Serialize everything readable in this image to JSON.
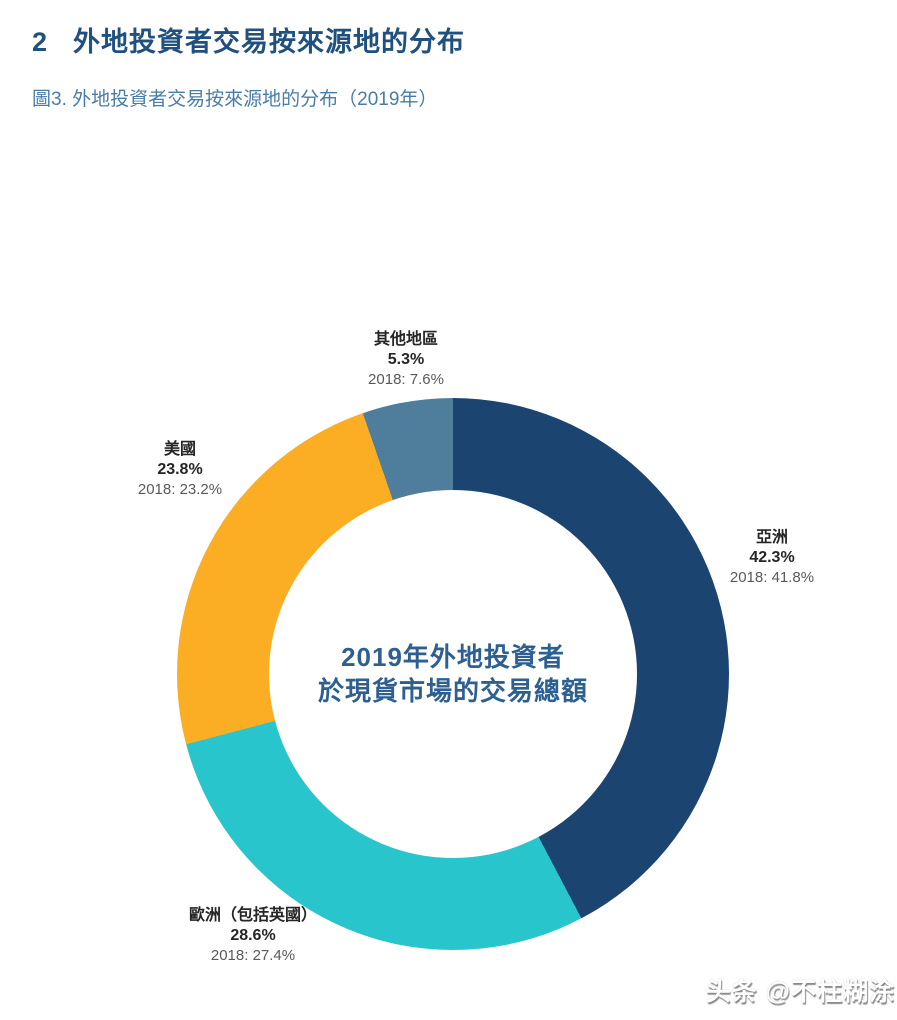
{
  "header": {
    "section_number": "2",
    "section_title": "外地投資者交易按來源地的分布",
    "figure_caption": "圖3. 外地投資者交易按來源地的分布（2019年）"
  },
  "chart_data": {
    "type": "pie",
    "donut": true,
    "start_angle_deg": 0,
    "direction": "clockwise",
    "legend_position": "around-labels",
    "center_title_line1": "2019年外地投資者",
    "center_title_line2": "於現貨市場的交易總額",
    "year": "2019",
    "comparison_year": "2018",
    "segments": [
      {
        "label": "亞洲",
        "value": 42.3,
        "value_2018": 41.8,
        "pct_label": "42.3%",
        "prev_label": "2018: 41.8%",
        "color": "#1B4470"
      },
      {
        "label": "歐洲（包括英國）",
        "value": 28.6,
        "value_2018": 27.4,
        "pct_label": "28.6%",
        "prev_label": "2018: 27.4%",
        "color": "#29C5CC"
      },
      {
        "label": "美國",
        "value": 23.8,
        "value_2018": 23.2,
        "pct_label": "23.8%",
        "prev_label": "2018: 23.2%",
        "color": "#FBAE24"
      },
      {
        "label": "其他地區",
        "value": 5.3,
        "value_2018": 7.6,
        "pct_label": "5.3%",
        "prev_label": "2018: 7.6%",
        "color": "#4F7E9C"
      }
    ]
  },
  "colors": {
    "heading": "#1F5080",
    "caption": "#4A7CA8",
    "center_text": "#2D5F92",
    "label_dark": "#262626",
    "label_gray": "#595959",
    "background": "#FFFFFF"
  },
  "watermark": {
    "text": "头条 @不柱糊涂"
  }
}
